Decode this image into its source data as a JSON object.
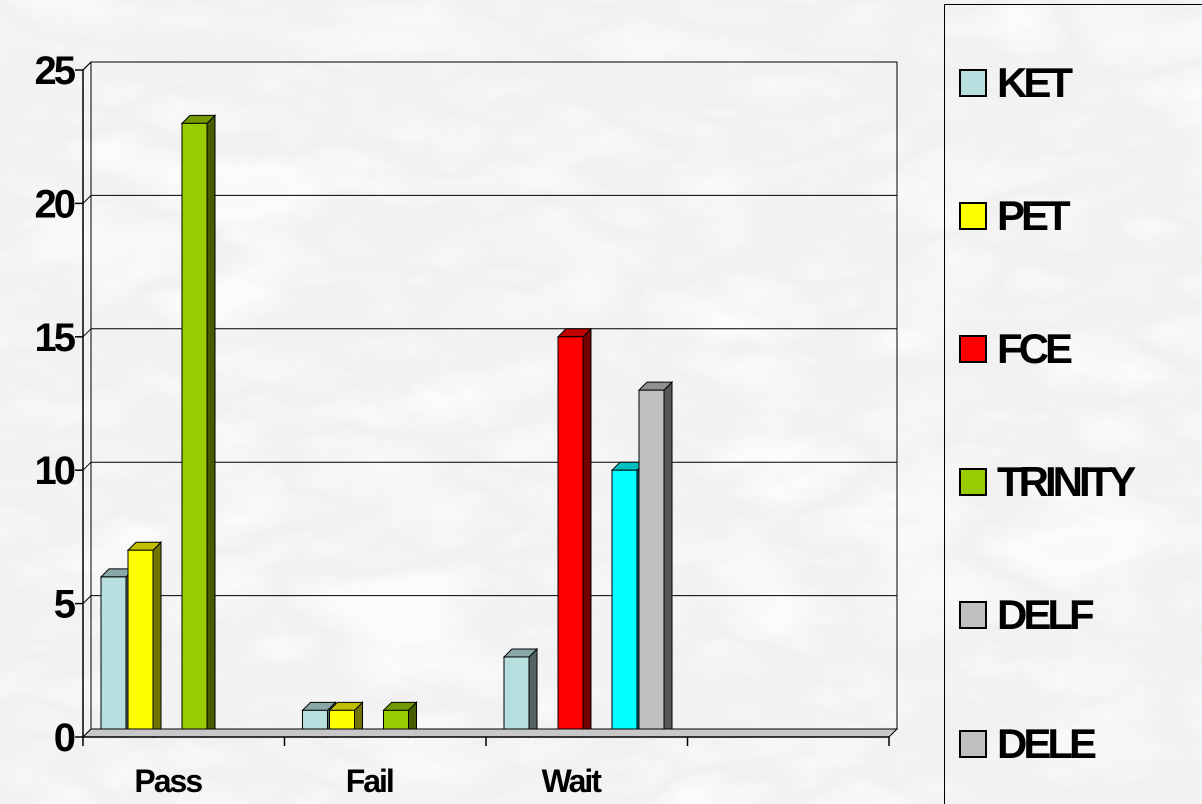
{
  "chart_data": {
    "type": "bar",
    "categories": [
      "Pass",
      "Fail",
      "Wait"
    ],
    "series": [
      {
        "name": "KET",
        "values": [
          6,
          1,
          3
        ],
        "color": "#b8dfe0"
      },
      {
        "name": "PET",
        "values": [
          7,
          1,
          0
        ],
        "color": "#ffff00"
      },
      {
        "name": "FCE",
        "values": [
          0,
          0,
          15
        ],
        "color": "#ff0000"
      },
      {
        "name": "TRINITY",
        "values": [
          23,
          1,
          0
        ],
        "color": "#99cc00"
      },
      {
        "name": "DELF",
        "values": [
          0,
          0,
          10
        ],
        "color": "#00ffff"
      },
      {
        "name": "DELE",
        "values": [
          0,
          0,
          13
        ],
        "color": "#c0c0c0"
      }
    ],
    "legend_swatch_colors": [
      "#b8dfe0",
      "#ffff00",
      "#ff0000",
      "#99cc00",
      "#c0c0c0",
      "#c0c0c0"
    ],
    "ylim": [
      0,
      25
    ],
    "yticks": [
      0,
      5,
      10,
      15,
      20,
      25
    ],
    "grid": true,
    "legend_position": "right",
    "background": "marble texture"
  }
}
